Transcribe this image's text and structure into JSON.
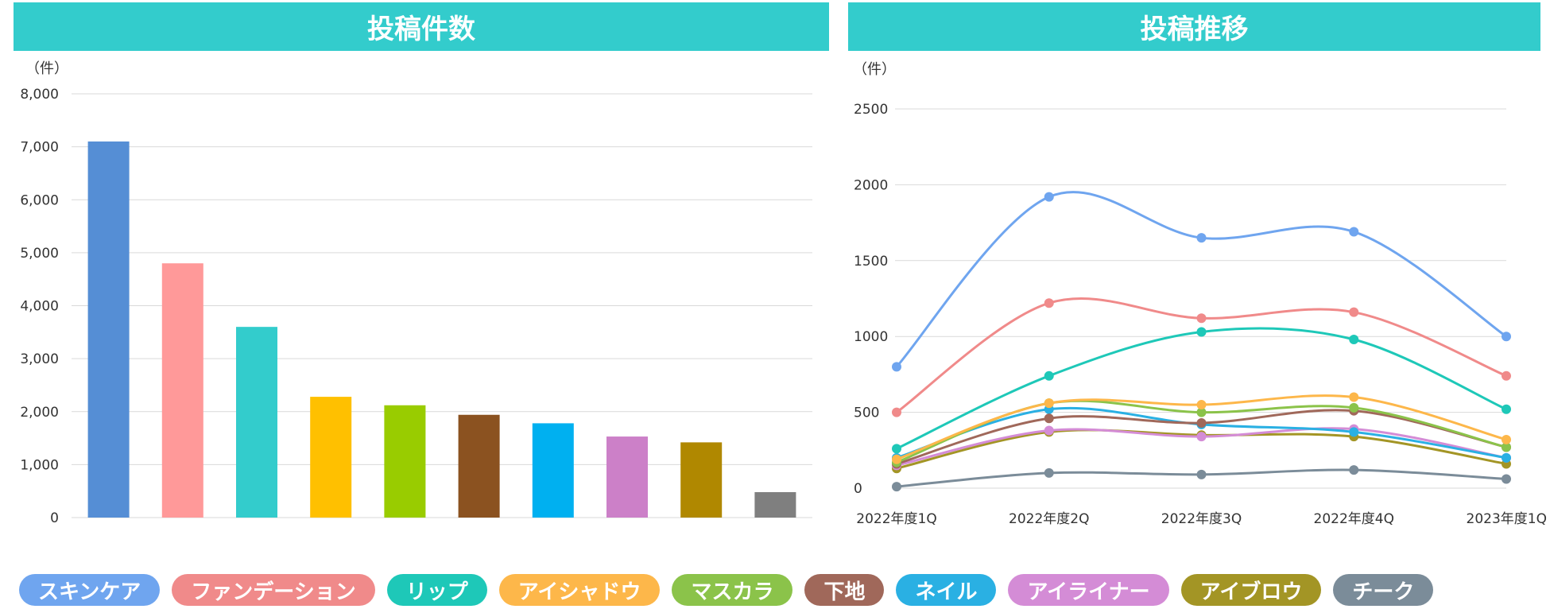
{
  "chart_data": [
    {
      "type": "bar",
      "title": "投稿件数",
      "ylabel": "（件）",
      "ylim": [
        0,
        8000
      ],
      "yticks": [
        0,
        1000,
        2000,
        3000,
        4000,
        5000,
        6000,
        7000,
        8000
      ],
      "ytick_labels": [
        "0",
        "1,000",
        "2,000",
        "3,000",
        "4,000",
        "5,000",
        "6,000",
        "7,000",
        "8,000"
      ],
      "categories": [
        "スキンケア",
        "ファンデーション",
        "リップ",
        "アイシャドウ",
        "マスカラ",
        "下地",
        "ネイル",
        "アイライナー",
        "アイブロウ",
        "チーク"
      ],
      "values": [
        7100,
        4800,
        3600,
        2280,
        2120,
        1940,
        1780,
        1530,
        1420,
        480
      ],
      "colors": [
        "#558ed5",
        "#ff9999",
        "#33cccc",
        "#ffc000",
        "#99cc00",
        "#8b5220",
        "#00b0f0",
        "#cc80c8",
        "#b08800",
        "#7f7f7f"
      ],
      "grid": true
    },
    {
      "type": "line",
      "title": "投稿推移",
      "ylabel": "（件）",
      "ylim": [
        0,
        2500
      ],
      "yticks": [
        0,
        500,
        1000,
        1500,
        2000,
        2500
      ],
      "ytick_labels": [
        "0",
        "500",
        "1000",
        "1500",
        "2000",
        "2500"
      ],
      "categories": [
        "2022年度1Q",
        "2022年度2Q",
        "2022年度3Q",
        "2022年度4Q",
        "2023年度1Q"
      ],
      "series": [
        {
          "name": "スキンケア",
          "color": "#6fa5ef",
          "values": [
            800,
            1920,
            1650,
            1690,
            1000
          ]
        },
        {
          "name": "ファンデーション",
          "color": "#f08a8a",
          "values": [
            500,
            1220,
            1120,
            1160,
            740
          ]
        },
        {
          "name": "リップ",
          "color": "#1ec8b8",
          "values": [
            260,
            740,
            1030,
            980,
            520
          ]
        },
        {
          "name": "アイシャドウ",
          "color": "#fdb74a",
          "values": [
            190,
            560,
            550,
            600,
            320
          ]
        },
        {
          "name": "マスカラ",
          "color": "#8bc34a",
          "values": [
            170,
            560,
            500,
            530,
            270
          ]
        },
        {
          "name": "下地",
          "color": "#a0685a",
          "values": [
            160,
            460,
            430,
            510,
            270
          ]
        },
        {
          "name": "ネイル",
          "color": "#2ab0e3",
          "values": [
            200,
            520,
            420,
            370,
            200
          ]
        },
        {
          "name": "アイライナー",
          "color": "#d48cd6",
          "values": [
            150,
            380,
            340,
            390,
            200
          ]
        },
        {
          "name": "アイブロウ",
          "color": "#a39525",
          "values": [
            130,
            370,
            350,
            340,
            160
          ]
        },
        {
          "name": "チーク",
          "color": "#7b8c99",
          "values": [
            10,
            100,
            90,
            120,
            60
          ]
        }
      ],
      "grid": true
    }
  ],
  "legend": [
    {
      "label": "スキンケア",
      "color": "#6fa5ef"
    },
    {
      "label": "ファンデーション",
      "color": "#f08a8a"
    },
    {
      "label": "リップ",
      "color": "#1ec8b8"
    },
    {
      "label": "アイシャドウ",
      "color": "#fdb74a"
    },
    {
      "label": "マスカラ",
      "color": "#8bc34a"
    },
    {
      "label": "下地",
      "color": "#a0685a"
    },
    {
      "label": "ネイル",
      "color": "#2ab0e3"
    },
    {
      "label": "アイライナー",
      "color": "#d48cd6"
    },
    {
      "label": "アイブロウ",
      "color": "#a39525"
    },
    {
      "label": "チーク",
      "color": "#7b8c99"
    }
  ]
}
